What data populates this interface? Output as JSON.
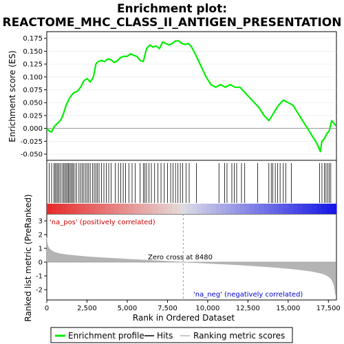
{
  "title_line1": "Enrichment plot:",
  "title_line2": "REACTOME_MHC_CLASS_II_ANTIGEN_PRESENTATION",
  "colors": {
    "enrichment": "#00ee00",
    "hits": "#000000",
    "metric": "#b4b4b4",
    "pos_text": "#cc0000",
    "neg_text": "#0000cc",
    "zero_line": "#999999"
  },
  "legend": {
    "enrichment": "Enrichment profile",
    "hits": "Hits",
    "metric": "Ranking metric scores"
  },
  "chart_data": {
    "type": "line",
    "xlabel": "Rank in Ordered Dataset",
    "xlim": [
      0,
      18000
    ],
    "x_ticks": [
      "0",
      "2,500",
      "5,000",
      "7,500",
      "10,000",
      "12,500",
      "15,000",
      "17,500"
    ],
    "x_tick_values": [
      0,
      2500,
      5000,
      7500,
      10000,
      12500,
      15000,
      17500
    ],
    "es_panel": {
      "ylabel": "Enrichment score (ES)",
      "ylim": [
        -0.062,
        0.188
      ],
      "y_ticks": [
        "0.175",
        "0.150",
        "0.125",
        "0.100",
        "0.075",
        "0.050",
        "0.025",
        "0.000",
        "-0.025",
        "-0.050"
      ],
      "y_tick_values": [
        0.175,
        0.15,
        0.125,
        0.1,
        0.075,
        0.05,
        0.025,
        0.0,
        -0.025,
        -0.05
      ],
      "series": [
        {
          "x": [
            0,
            150,
            300,
            450,
            600,
            750,
            900,
            1050,
            1200,
            1350,
            1500,
            1700,
            1900,
            2100,
            2300,
            2500,
            2700,
            2900,
            3050,
            3200,
            3400,
            3600,
            3800,
            4000,
            4200,
            4400,
            4600,
            4800,
            5000,
            5200,
            5400,
            5600,
            5800,
            6000,
            6200,
            6400,
            6600,
            6800,
            7000,
            7200,
            7400,
            7600,
            7800,
            8000,
            8200,
            8400,
            8600,
            8800,
            9000,
            9300,
            9600,
            9900,
            10200,
            10500,
            10800,
            11100,
            11400,
            11700,
            12000,
            12300,
            12600,
            12900,
            13200,
            13500,
            13800,
            14100,
            14400,
            14700,
            15000,
            15300,
            15600,
            15900,
            16200,
            16500,
            16800,
            17000,
            17100,
            17250,
            17400,
            17550,
            17700,
            17850,
            17950
          ],
          "values": [
            0.0,
            -0.005,
            -0.007,
            0.003,
            0.008,
            0.012,
            0.018,
            0.03,
            0.045,
            0.055,
            0.063,
            0.07,
            0.072,
            0.08,
            0.092,
            0.097,
            0.09,
            0.1,
            0.125,
            0.13,
            0.132,
            0.13,
            0.135,
            0.133,
            0.128,
            0.132,
            0.138,
            0.14,
            0.14,
            0.145,
            0.142,
            0.14,
            0.132,
            0.13,
            0.155,
            0.162,
            0.158,
            0.16,
            0.155,
            0.168,
            0.165,
            0.162,
            0.165,
            0.17,
            0.17,
            0.165,
            0.163,
            0.165,
            0.158,
            0.14,
            0.12,
            0.1,
            0.085,
            0.08,
            0.085,
            0.08,
            0.085,
            0.08,
            0.08,
            0.07,
            0.06,
            0.05,
            0.04,
            0.025,
            0.015,
            0.03,
            0.045,
            0.055,
            0.05,
            0.045,
            0.03,
            0.015,
            0.0,
            -0.015,
            -0.03,
            -0.045,
            -0.025,
            -0.02,
            -0.01,
            -0.005,
            0.015,
            0.01,
            0.005
          ]
        }
      ]
    },
    "hits_panel": {
      "hit_ranks": [
        150,
        300,
        450,
        520,
        600,
        680,
        760,
        850,
        950,
        1050,
        1120,
        1200,
        1280,
        1350,
        1420,
        1500,
        1580,
        1650,
        1750,
        1850,
        2000,
        2100,
        2200,
        2300,
        2400,
        2500,
        2600,
        2700,
        2850,
        2950,
        3050,
        3150,
        3250,
        3400,
        3550,
        3700,
        3850,
        4000,
        4250,
        4450,
        4600,
        4750,
        4900,
        5100,
        5300,
        5500,
        5800,
        6000,
        6100,
        6200,
        6350,
        6500,
        6700,
        6900,
        7100,
        7300,
        7500,
        7700,
        7850,
        8000,
        8150,
        8300,
        8450,
        8650,
        8850,
        9300,
        10700,
        11050,
        11200,
        11500,
        11650,
        11800,
        12100,
        12300,
        13100,
        13800,
        13950,
        14050,
        14200,
        14350,
        14500,
        14700,
        14850,
        15200,
        16950,
        17100,
        17250,
        17350,
        17450,
        17550,
        17650
      ]
    },
    "metric_panel": {
      "ylabel": "Ranked list metric (PreRanked)",
      "ylim": [
        -2.75,
        3.5
      ],
      "y_ticks": [
        "3",
        "2",
        "1",
        "0",
        "-1",
        "-2"
      ],
      "y_tick_values": [
        3,
        2,
        1,
        0,
        -1,
        -2
      ],
      "x": [
        0,
        30,
        80,
        150,
        300,
        500,
        800,
        1200,
        1600,
        2000,
        2500,
        3000,
        3500,
        4000,
        4500,
        5000,
        5500,
        6000,
        6500,
        7000,
        7500,
        8000,
        8480,
        9000,
        9500,
        10000,
        10500,
        11000,
        11500,
        12000,
        12500,
        13000,
        13500,
        14000,
        14500,
        15000,
        15500,
        16000,
        16500,
        17000,
        17300,
        17500,
        17650,
        17750,
        17850,
        17950
      ],
      "values": [
        1.8,
        1.4,
        1.15,
        1.0,
        0.85,
        0.72,
        0.62,
        0.55,
        0.5,
        0.45,
        0.4,
        0.36,
        0.32,
        0.29,
        0.26,
        0.22,
        0.19,
        0.16,
        0.13,
        0.1,
        0.07,
        0.04,
        0.0,
        -0.03,
        -0.06,
        -0.09,
        -0.12,
        -0.15,
        -0.18,
        -0.21,
        -0.25,
        -0.29,
        -0.33,
        -0.37,
        -0.42,
        -0.47,
        -0.53,
        -0.6,
        -0.68,
        -0.8,
        -0.92,
        -1.05,
        -1.2,
        -1.4,
        -1.7,
        -2.4
      ],
      "annotations": {
        "pos": "'na_pos' (positively correlated)",
        "neg": "'na_neg' (negatively correlated)",
        "zero": "Zero cross at 8480",
        "zero_cross": 8480
      }
    }
  }
}
